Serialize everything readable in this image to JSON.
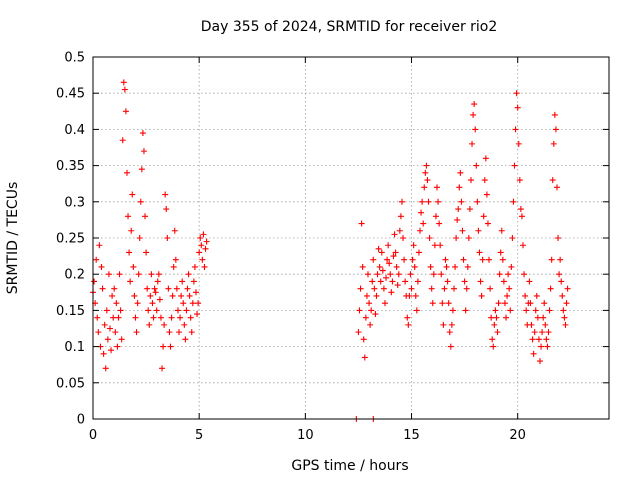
{
  "chart_data": {
    "type": "scatter",
    "title": "Day 355 of 2024, SRMTID for receiver rio2",
    "xlabel": "GPS time / hours",
    "ylabel": "SRMTID / TECUs",
    "xlim": [
      0,
      24.3
    ],
    "ylim": [
      0,
      0.5
    ],
    "xticks": [
      "0",
      "5",
      "10",
      "15",
      "20"
    ],
    "xtick_values": [
      0,
      5,
      10,
      15,
      20
    ],
    "yticks": [
      "0",
      "0.05",
      "0.1",
      "0.15",
      "0.2",
      "0.25",
      "0.3",
      "0.35",
      "0.4",
      "0.45",
      "0.5"
    ],
    "ytick_values": [
      0,
      0.05,
      0.1,
      0.15,
      0.2,
      0.25,
      0.3,
      0.35,
      0.4,
      0.45,
      0.5
    ],
    "grid": true,
    "marker": "plus",
    "color": "#ff0000",
    "series": [
      {
        "name": "",
        "points": [
          [
            0.0,
            0.175
          ],
          [
            0.05,
            0.19
          ],
          [
            0.1,
            0.16
          ],
          [
            0.15,
            0.22
          ],
          [
            0.2,
            0.14
          ],
          [
            0.25,
            0.12
          ],
          [
            0.3,
            0.24
          ],
          [
            0.35,
            0.1
          ],
          [
            0.4,
            0.21
          ],
          [
            0.45,
            0.18
          ],
          [
            0.5,
            0.09
          ],
          [
            0.55,
            0.13
          ],
          [
            0.6,
            0.07
          ],
          [
            0.65,
            0.15
          ],
          [
            0.7,
            0.11
          ],
          [
            0.75,
            0.2
          ],
          [
            0.8,
            0.125
          ],
          [
            0.85,
            0.095
          ],
          [
            0.9,
            0.17
          ],
          [
            0.95,
            0.14
          ],
          [
            1.0,
            0.18
          ],
          [
            1.05,
            0.12
          ],
          [
            1.1,
            0.16
          ],
          [
            1.15,
            0.1
          ],
          [
            1.2,
            0.14
          ],
          [
            1.25,
            0.2
          ],
          [
            1.3,
            0.15
          ],
          [
            1.35,
            0.11
          ],
          [
            1.4,
            0.385
          ],
          [
            1.45,
            0.465
          ],
          [
            1.5,
            0.455
          ],
          [
            1.55,
            0.425
          ],
          [
            1.6,
            0.34
          ],
          [
            1.65,
            0.28
          ],
          [
            1.7,
            0.23
          ],
          [
            1.75,
            0.19
          ],
          [
            1.8,
            0.26
          ],
          [
            1.85,
            0.31
          ],
          [
            1.9,
            0.21
          ],
          [
            1.95,
            0.17
          ],
          [
            2.0,
            0.14
          ],
          [
            2.05,
            0.12
          ],
          [
            2.1,
            0.16
          ],
          [
            2.15,
            0.2
          ],
          [
            2.2,
            0.25
          ],
          [
            2.25,
            0.3
          ],
          [
            2.3,
            0.345
          ],
          [
            2.35,
            0.395
          ],
          [
            2.4,
            0.37
          ],
          [
            2.45,
            0.28
          ],
          [
            2.5,
            0.23
          ],
          [
            2.55,
            0.18
          ],
          [
            2.6,
            0.15
          ],
          [
            2.65,
            0.13
          ],
          [
            2.7,
            0.17
          ],
          [
            2.75,
            0.2
          ],
          [
            2.8,
            0.16
          ],
          [
            2.85,
            0.14
          ],
          [
            2.9,
            0.18
          ],
          [
            2.95,
            0.175
          ],
          [
            3.0,
            0.15
          ],
          [
            3.05,
            0.19
          ],
          [
            3.1,
            0.2
          ],
          [
            3.15,
            0.165
          ],
          [
            3.2,
            0.14
          ],
          [
            3.25,
            0.07
          ],
          [
            3.3,
            0.1
          ],
          [
            3.35,
            0.13
          ],
          [
            3.4,
            0.31
          ],
          [
            3.45,
            0.29
          ],
          [
            3.5,
            0.25
          ],
          [
            3.55,
            0.18
          ],
          [
            3.6,
            0.12
          ],
          [
            3.65,
            0.1
          ],
          [
            3.7,
            0.14
          ],
          [
            3.75,
            0.17
          ],
          [
            3.8,
            0.21
          ],
          [
            3.85,
            0.26
          ],
          [
            3.9,
            0.22
          ],
          [
            3.95,
            0.18
          ],
          [
            4.0,
            0.15
          ],
          [
            4.05,
            0.12
          ],
          [
            4.1,
            0.14
          ],
          [
            4.15,
            0.17
          ],
          [
            4.2,
            0.19
          ],
          [
            4.25,
            0.16
          ],
          [
            4.3,
            0.13
          ],
          [
            4.35,
            0.11
          ],
          [
            4.4,
            0.15
          ],
          [
            4.45,
            0.18
          ],
          [
            4.5,
            0.2
          ],
          [
            4.55,
            0.17
          ],
          [
            4.6,
            0.14
          ],
          [
            4.65,
            0.12
          ],
          [
            4.7,
            0.16
          ],
          [
            4.75,
            0.19
          ],
          [
            4.8,
            0.21
          ],
          [
            4.85,
            0.175
          ],
          [
            4.9,
            0.145
          ],
          [
            4.95,
            0.16
          ],
          [
            5.0,
            0.23
          ],
          [
            5.05,
            0.25
          ],
          [
            5.1,
            0.24
          ],
          [
            5.15,
            0.22
          ],
          [
            5.2,
            0.255
          ],
          [
            5.25,
            0.21
          ],
          [
            5.3,
            0.235
          ],
          [
            5.35,
            0.245
          ],
          [
            12.4,
            0.0
          ],
          [
            13.2,
            0.0
          ],
          [
            12.5,
            0.12
          ],
          [
            12.55,
            0.15
          ],
          [
            12.6,
            0.18
          ],
          [
            12.65,
            0.27
          ],
          [
            12.7,
            0.21
          ],
          [
            12.75,
            0.11
          ],
          [
            12.8,
            0.085
          ],
          [
            12.85,
            0.14
          ],
          [
            12.9,
            0.17
          ],
          [
            12.95,
            0.2
          ],
          [
            13.0,
            0.16
          ],
          [
            13.05,
            0.13
          ],
          [
            13.1,
            0.15
          ],
          [
            13.15,
            0.19
          ],
          [
            13.2,
            0.22
          ],
          [
            13.25,
            0.18
          ],
          [
            13.3,
            0.145
          ],
          [
            13.35,
            0.17
          ],
          [
            13.4,
            0.2
          ],
          [
            13.45,
            0.235
          ],
          [
            13.5,
            0.21
          ],
          [
            13.55,
            0.19
          ],
          [
            13.6,
            0.23
          ],
          [
            13.65,
            0.205
          ],
          [
            13.7,
            0.18
          ],
          [
            13.75,
            0.16
          ],
          [
            13.8,
            0.195
          ],
          [
            13.85,
            0.22
          ],
          [
            13.9,
            0.24
          ],
          [
            13.95,
            0.215
          ],
          [
            14.0,
            0.2
          ],
          [
            14.05,
            0.175
          ],
          [
            14.1,
            0.19
          ],
          [
            14.15,
            0.225
          ],
          [
            14.2,
            0.255
          ],
          [
            14.25,
            0.23
          ],
          [
            14.3,
            0.21
          ],
          [
            14.35,
            0.185
          ],
          [
            14.4,
            0.2
          ],
          [
            14.45,
            0.26
          ],
          [
            14.5,
            0.28
          ],
          [
            14.55,
            0.3
          ],
          [
            14.6,
            0.25
          ],
          [
            14.65,
            0.22
          ],
          [
            14.7,
            0.19
          ],
          [
            14.75,
            0.17
          ],
          [
            14.8,
            0.14
          ],
          [
            14.85,
            0.13
          ],
          [
            14.9,
            0.17
          ],
          [
            14.95,
            0.2
          ],
          [
            15.0,
            0.18
          ],
          [
            15.05,
            0.22
          ],
          [
            15.1,
            0.24
          ],
          [
            15.15,
            0.21
          ],
          [
            15.2,
            0.17
          ],
          [
            15.25,
            0.15
          ],
          [
            15.3,
            0.19
          ],
          [
            15.35,
            0.23
          ],
          [
            15.4,
            0.26
          ],
          [
            15.45,
            0.285
          ],
          [
            15.5,
            0.3
          ],
          [
            15.55,
            0.27
          ],
          [
            15.6,
            0.32
          ],
          [
            15.65,
            0.34
          ],
          [
            15.7,
            0.35
          ],
          [
            15.75,
            0.33
          ],
          [
            15.8,
            0.3
          ],
          [
            15.85,
            0.25
          ],
          [
            15.9,
            0.21
          ],
          [
            15.95,
            0.18
          ],
          [
            16.0,
            0.16
          ],
          [
            16.05,
            0.2
          ],
          [
            16.1,
            0.24
          ],
          [
            16.15,
            0.28
          ],
          [
            16.2,
            0.32
          ],
          [
            16.25,
            0.3
          ],
          [
            16.3,
            0.27
          ],
          [
            16.35,
            0.24
          ],
          [
            16.4,
            0.2
          ],
          [
            16.45,
            0.16
          ],
          [
            16.5,
            0.13
          ],
          [
            16.55,
            0.18
          ],
          [
            16.6,
            0.22
          ],
          [
            16.65,
            0.21
          ],
          [
            16.7,
            0.19
          ],
          [
            16.75,
            0.16
          ],
          [
            16.8,
            0.12
          ],
          [
            16.85,
            0.1
          ],
          [
            16.9,
            0.13
          ],
          [
            16.95,
            0.15
          ],
          [
            17.0,
            0.18
          ],
          [
            17.05,
            0.21
          ],
          [
            17.1,
            0.25
          ],
          [
            17.15,
            0.275
          ],
          [
            17.2,
            0.29
          ],
          [
            17.25,
            0.32
          ],
          [
            17.3,
            0.34
          ],
          [
            17.35,
            0.3
          ],
          [
            17.4,
            0.26
          ],
          [
            17.45,
            0.22
          ],
          [
            17.5,
            0.19
          ],
          [
            17.55,
            0.15
          ],
          [
            17.6,
            0.18
          ],
          [
            17.65,
            0.21
          ],
          [
            17.7,
            0.25
          ],
          [
            17.75,
            0.29
          ],
          [
            17.8,
            0.33
          ],
          [
            17.85,
            0.38
          ],
          [
            17.9,
            0.42
          ],
          [
            17.95,
            0.435
          ],
          [
            18.0,
            0.4
          ],
          [
            18.05,
            0.35
          ],
          [
            18.1,
            0.3
          ],
          [
            18.15,
            0.26
          ],
          [
            18.2,
            0.23
          ],
          [
            18.25,
            0.19
          ],
          [
            18.3,
            0.17
          ],
          [
            18.35,
            0.22
          ],
          [
            18.4,
            0.28
          ],
          [
            18.45,
            0.33
          ],
          [
            18.5,
            0.36
          ],
          [
            18.55,
            0.31
          ],
          [
            18.6,
            0.27
          ],
          [
            18.65,
            0.22
          ],
          [
            18.7,
            0.18
          ],
          [
            18.75,
            0.14
          ],
          [
            18.8,
            0.11
          ],
          [
            18.85,
            0.1
          ],
          [
            18.9,
            0.13
          ],
          [
            18.95,
            0.15
          ],
          [
            19.0,
            0.14
          ],
          [
            19.05,
            0.12
          ],
          [
            19.1,
            0.16
          ],
          [
            19.15,
            0.2
          ],
          [
            19.2,
            0.23
          ],
          [
            19.25,
            0.26
          ],
          [
            19.3,
            0.22
          ],
          [
            19.35,
            0.19
          ],
          [
            19.4,
            0.16
          ],
          [
            19.45,
            0.14
          ],
          [
            19.5,
            0.17
          ],
          [
            19.55,
            0.2
          ],
          [
            19.6,
            0.18
          ],
          [
            19.65,
            0.15
          ],
          [
            19.7,
            0.21
          ],
          [
            19.75,
            0.25
          ],
          [
            19.8,
            0.3
          ],
          [
            19.85,
            0.35
          ],
          [
            19.9,
            0.4
          ],
          [
            19.95,
            0.45
          ],
          [
            20.0,
            0.43
          ],
          [
            20.05,
            0.38
          ],
          [
            20.1,
            0.33
          ],
          [
            20.15,
            0.29
          ],
          [
            20.2,
            0.28
          ],
          [
            20.25,
            0.24
          ],
          [
            20.3,
            0.2
          ],
          [
            20.35,
            0.17
          ],
          [
            20.4,
            0.15
          ],
          [
            20.45,
            0.13
          ],
          [
            20.5,
            0.16
          ],
          [
            20.55,
            0.19
          ],
          [
            20.6,
            0.16
          ],
          [
            20.65,
            0.13
          ],
          [
            20.7,
            0.11
          ],
          [
            20.75,
            0.09
          ],
          [
            20.8,
            0.12
          ],
          [
            20.85,
            0.15
          ],
          [
            20.9,
            0.17
          ],
          [
            20.95,
            0.14
          ],
          [
            21.0,
            0.11
          ],
          [
            21.05,
            0.08
          ],
          [
            21.1,
            0.1
          ],
          [
            21.15,
            0.12
          ],
          [
            21.2,
            0.14
          ],
          [
            21.25,
            0.16
          ],
          [
            21.3,
            0.13
          ],
          [
            21.35,
            0.11
          ],
          [
            21.4,
            0.1
          ],
          [
            21.45,
            0.12
          ],
          [
            21.5,
            0.15
          ],
          [
            21.55,
            0.18
          ],
          [
            21.6,
            0.22
          ],
          [
            21.65,
            0.33
          ],
          [
            21.7,
            0.38
          ],
          [
            21.75,
            0.42
          ],
          [
            21.8,
            0.4
          ],
          [
            21.85,
            0.32
          ],
          [
            21.9,
            0.25
          ],
          [
            21.95,
            0.2
          ],
          [
            22.0,
            0.22
          ],
          [
            22.05,
            0.19
          ],
          [
            22.1,
            0.17
          ],
          [
            22.15,
            0.15
          ],
          [
            22.2,
            0.14
          ],
          [
            22.25,
            0.13
          ],
          [
            22.3,
            0.16
          ],
          [
            22.35,
            0.18
          ]
        ]
      }
    ]
  }
}
